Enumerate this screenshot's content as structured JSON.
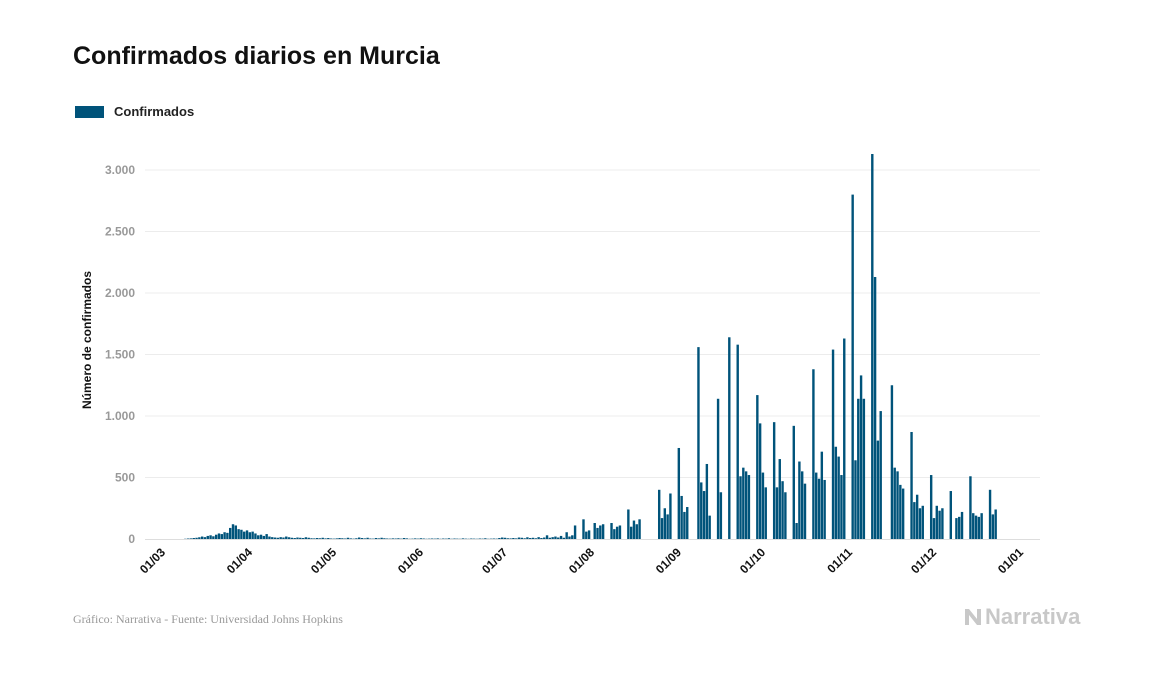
{
  "chart_data": {
    "type": "bar",
    "title": "Confirmados diarios en Murcia",
    "xlabel": "",
    "ylabel": "Número de confirmados",
    "xlim": [
      "2020-03-01",
      "2021-01-01"
    ],
    "ylim": [
      0,
      3250
    ],
    "grid": true,
    "legend_position": "top-left",
    "x_tick_labels": [
      "01/03",
      "01/04",
      "01/05",
      "01/06",
      "01/07",
      "01/08",
      "01/09",
      "01/10",
      "01/11",
      "01/12",
      "01/01"
    ],
    "y_ticks": [
      0,
      500,
      1000,
      1500,
      2000,
      2500,
      3000
    ],
    "y_tick_labels": [
      "0",
      "500",
      "1.000",
      "1.500",
      "2.000",
      "2.500",
      "3.000"
    ],
    "series": [
      {
        "name": "Confirmados",
        "color": "#00537a",
        "values": [
          0,
          0,
          0,
          0,
          0,
          0,
          0,
          0,
          0,
          2,
          4,
          5,
          8,
          10,
          14,
          20,
          15,
          25,
          30,
          22,
          35,
          45,
          40,
          55,
          50,
          90,
          120,
          110,
          80,
          75,
          60,
          70,
          55,
          60,
          45,
          30,
          35,
          25,
          40,
          20,
          15,
          12,
          10,
          15,
          12,
          20,
          14,
          10,
          8,
          12,
          10,
          8,
          14,
          10,
          6,
          5,
          8,
          6,
          10,
          5,
          8,
          4,
          3,
          5,
          8,
          6,
          4,
          10,
          5,
          3,
          6,
          12,
          8,
          5,
          10,
          4,
          3,
          8,
          5,
          10,
          6,
          4,
          3,
          5,
          4,
          6,
          3,
          8,
          5,
          2,
          3,
          5,
          3,
          6,
          4,
          2,
          3,
          4,
          3,
          5,
          2,
          4,
          3,
          6,
          2,
          4,
          3,
          2,
          5,
          3,
          2,
          4,
          3,
          2,
          4,
          3,
          6,
          2,
          3,
          4,
          3,
          8,
          12,
          10,
          6,
          5,
          8,
          5,
          12,
          10,
          6,
          14,
          8,
          10,
          6,
          15,
          8,
          12,
          30,
          10,
          15,
          20,
          12,
          25,
          10,
          55,
          20,
          30,
          110,
          0,
          0,
          160,
          60,
          70,
          0,
          130,
          90,
          110,
          120,
          0,
          0,
          130,
          80,
          100,
          110,
          0,
          0,
          240,
          100,
          150,
          120,
          160,
          0,
          0,
          0,
          0,
          0,
          0,
          400,
          170,
          250,
          200,
          370,
          0,
          0,
          740,
          350,
          220,
          260,
          0,
          0,
          0,
          1560,
          460,
          390,
          610,
          190,
          0,
          0,
          1140,
          380,
          0,
          0,
          1640,
          0,
          0,
          1580,
          510,
          580,
          550,
          520,
          0,
          0,
          1170,
          940,
          540,
          420,
          0,
          0,
          950,
          420,
          650,
          470,
          380,
          0,
          0,
          920,
          130,
          630,
          550,
          450,
          0,
          0,
          1380,
          540,
          490,
          710,
          480,
          0,
          0,
          1540,
          750,
          670,
          520,
          1630,
          0,
          0,
          2800,
          640,
          1140,
          1330,
          1140,
          0,
          0,
          3130,
          2130,
          800,
          1040,
          0,
          0,
          0,
          1250,
          580,
          550,
          440,
          410,
          0,
          0,
          870,
          300,
          360,
          250,
          270,
          0,
          0,
          520,
          170,
          270,
          230,
          250,
          0,
          0,
          390,
          0,
          170,
          180,
          220,
          0,
          0,
          510,
          210,
          190,
          180,
          210,
          0,
          0,
          400,
          200,
          240
        ]
      }
    ]
  },
  "footer": "Gráfico: Narrativa - Fuente: Universidad Johns Hopkins",
  "logo": "Narrativa"
}
